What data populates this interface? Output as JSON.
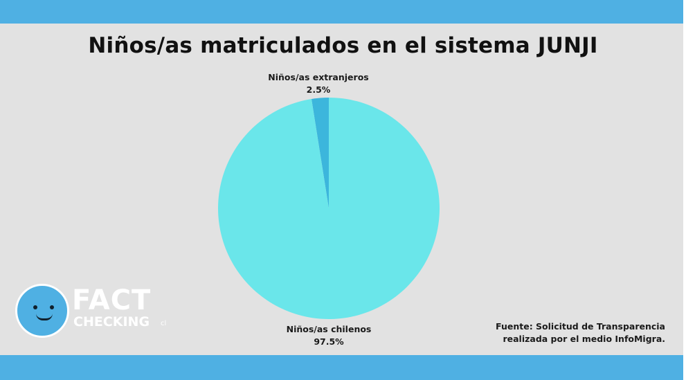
{
  "title": "Niños/as matriculados en el sistema JUNJI",
  "chart_data": {
    "type": "pie",
    "title": "Niños/as matriculados en el sistema JUNJI",
    "slices": [
      {
        "label": "Niños/as extranjeros",
        "value": 2.5,
        "value_label": "2.5%",
        "color": "#3cb6dc"
      },
      {
        "label": "Niños/as chilenos",
        "value": 97.5,
        "value_label": "97.5%",
        "color": "#6ae6ea"
      }
    ],
    "legend": "none"
  },
  "source": {
    "line1": "Fuente: Solicitud de Transparencia",
    "line2": "realizada por el medio InfoMigra."
  },
  "logo": {
    "brand_line1": "FACT",
    "brand_line2": "CHECKING",
    "brand_suffix": "cl",
    "icon": "smiley-face-icon"
  },
  "colors": {
    "band": "#4fb0e3",
    "background": "#e2e2e2"
  }
}
